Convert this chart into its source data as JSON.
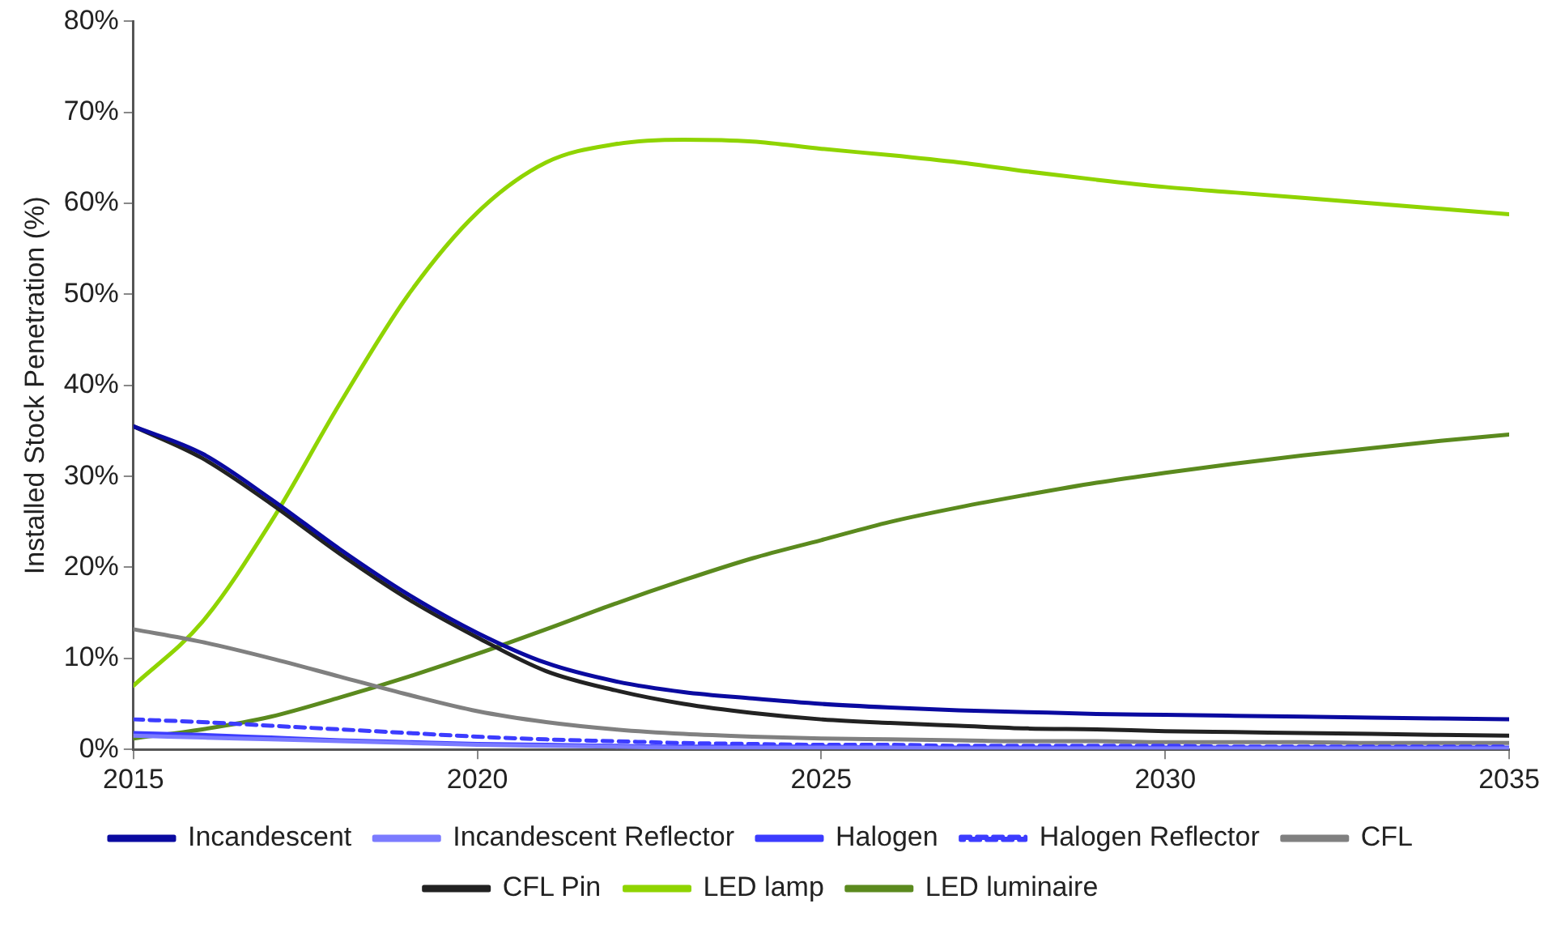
{
  "chart_data": {
    "type": "line",
    "ylabel": "Installed Stock Penetration (%)",
    "grid": false,
    "legend": "bottom",
    "marker": "none",
    "line_style": "solid",
    "x": [
      2015,
      2016,
      2017,
      2018,
      2019,
      2020,
      2021,
      2022,
      2023,
      2024,
      2025,
      2026,
      2027,
      2028,
      2029,
      2030,
      2031,
      2032,
      2033,
      2034,
      2035
    ],
    "xlim": [
      2015,
      2035
    ],
    "xticks": [
      2015,
      2020,
      2025,
      2030,
      2035
    ],
    "ylim": [
      0,
      80
    ],
    "yticks": [
      {
        "value": 0,
        "label": "0%"
      },
      {
        "value": 10,
        "label": "10%"
      },
      {
        "value": 20,
        "label": "20%"
      },
      {
        "value": 30,
        "label": "30%"
      },
      {
        "value": 40,
        "label": "40%"
      },
      {
        "value": 50,
        "label": "50%"
      },
      {
        "value": 60,
        "label": "60%"
      },
      {
        "value": 70,
        "label": "70%"
      },
      {
        "value": 80,
        "label": "80%"
      }
    ],
    "series": [
      {
        "name": "Incandescent",
        "color": "#0a0aa0",
        "values": [
          35.5,
          32.5,
          27.5,
          22,
          17,
          12.8,
          9.5,
          7.5,
          6.3,
          5.6,
          5,
          4.6,
          4.3,
          4.1,
          3.9,
          3.8,
          3.7,
          3.6,
          3.5,
          3.4,
          3.3
        ]
      },
      {
        "name": "Incandescent Reflector",
        "color": "#7b7bff",
        "values": [
          1.5,
          1.3,
          1.1,
          0.9,
          0.7,
          0.5,
          0.4,
          0.3,
          0.2,
          0.2,
          0.2,
          0.2,
          0.1,
          0.1,
          0.1,
          0.1,
          0.1,
          0.1,
          0.1,
          0.1,
          0.1
        ]
      },
      {
        "name": "Halogen",
        "color": "#3c3cff",
        "values": [
          1.8,
          1.6,
          1.3,
          1,
          0.8,
          0.6,
          0.5,
          0.4,
          0.3,
          0.3,
          0.3,
          0.2,
          0.2,
          0.2,
          0.2,
          0.2,
          0.2,
          0.2,
          0.2,
          0.2,
          0.2
        ]
      },
      {
        "name": "Halogen Reflector",
        "color": "#3c3cff",
        "line_style": "dashed",
        "values": [
          3.3,
          3,
          2.6,
          2.2,
          1.8,
          1.4,
          1.1,
          0.9,
          0.7,
          0.6,
          0.5,
          0.5,
          0.4,
          0.4,
          0.4,
          0.4,
          0.3,
          0.3,
          0.3,
          0.3,
          0.3
        ]
      },
      {
        "name": "CFL",
        "color": "#808080",
        "values": [
          13.2,
          11.8,
          10,
          8,
          6,
          4.2,
          3,
          2.2,
          1.7,
          1.4,
          1.2,
          1.1,
          1,
          0.9,
          0.9,
          0.8,
          0.8,
          0.8,
          0.7,
          0.7,
          0.7
        ]
      },
      {
        "name": "CFL Pin",
        "color": "#222222",
        "values": [
          35.5,
          32,
          27,
          21.5,
          16.5,
          12.3,
          8.6,
          6.5,
          5,
          4,
          3.3,
          2.9,
          2.6,
          2.3,
          2.2,
          2,
          1.9,
          1.8,
          1.7,
          1.6,
          1.5
        ]
      },
      {
        "name": "LED lamp",
        "color": "#8fd400",
        "values": [
          7,
          14,
          25,
          38,
          50,
          59,
          64.5,
          66.5,
          67,
          66.8,
          66,
          65.3,
          64.5,
          63.5,
          62.6,
          61.8,
          61.2,
          60.6,
          60,
          59.4,
          58.8
        ]
      },
      {
        "name": "LED luminaire",
        "color": "#5b8a1e",
        "values": [
          1.2,
          2.2,
          3.6,
          5.7,
          8,
          10.5,
          13.2,
          16,
          18.6,
          21,
          23,
          25,
          26.6,
          28,
          29.3,
          30.4,
          31.4,
          32.3,
          33.1,
          33.9,
          34.6
        ]
      }
    ]
  }
}
